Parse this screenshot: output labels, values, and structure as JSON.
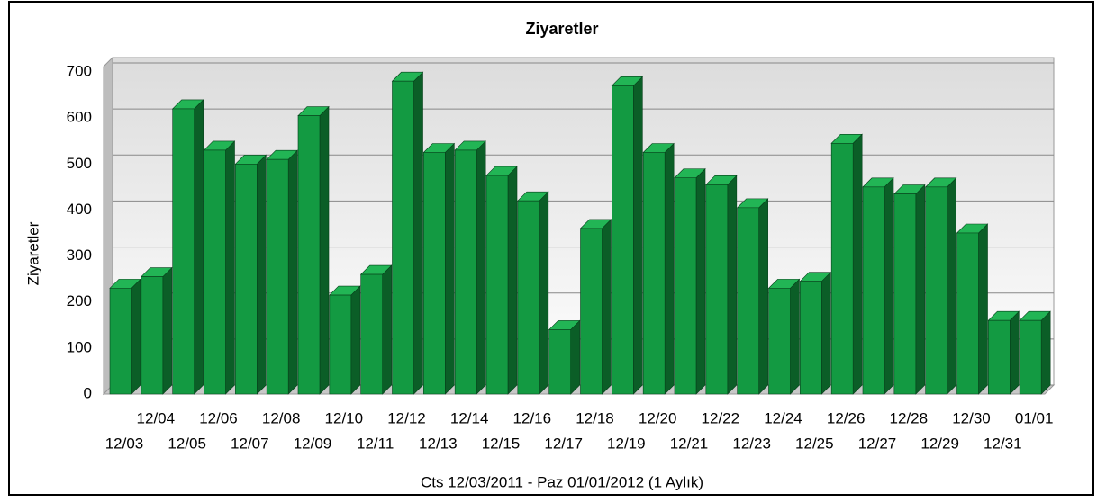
{
  "chart_data": {
    "type": "bar",
    "title": "Ziyaretler",
    "y_label": "Ziyaretler",
    "x_label": "Cts 12/03/2011 - Paz 01/01/2012 (1 Aylık)",
    "categories": [
      "12/03",
      "12/04",
      "12/05",
      "12/06",
      "12/07",
      "12/08",
      "12/09",
      "12/10",
      "12/11",
      "12/12",
      "12/13",
      "12/14",
      "12/15",
      "12/16",
      "12/17",
      "12/18",
      "12/19",
      "12/20",
      "12/21",
      "12/22",
      "12/23",
      "12/24",
      "12/25",
      "12/26",
      "12/27",
      "12/28",
      "12/29",
      "12/30",
      "12/31",
      "01/01"
    ],
    "values": [
      230,
      255,
      620,
      530,
      500,
      510,
      605,
      215,
      260,
      680,
      525,
      530,
      475,
      420,
      140,
      360,
      670,
      525,
      470,
      455,
      405,
      230,
      245,
      545,
      450,
      435,
      450,
      350,
      160,
      160
    ],
    "color": "#139a42",
    "ylim": [
      0,
      700
    ],
    "yticks": [
      0,
      100,
      200,
      300,
      400,
      500,
      600,
      700
    ],
    "grid": true
  }
}
